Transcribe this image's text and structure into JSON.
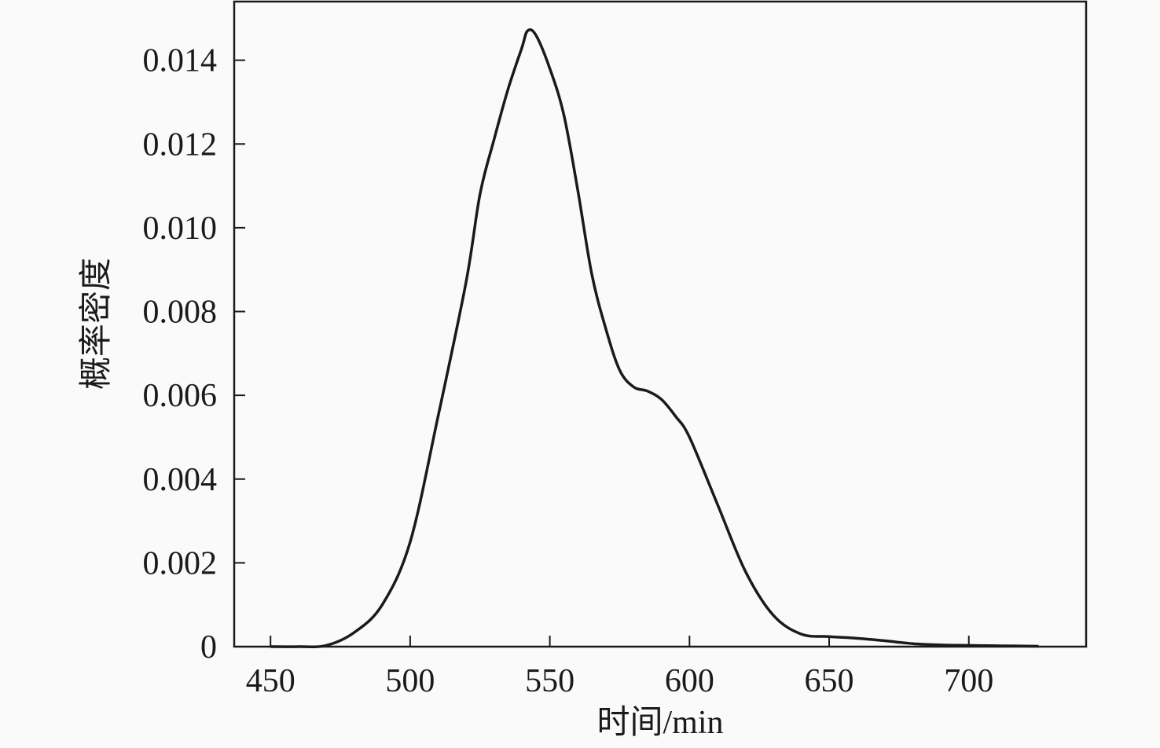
{
  "chart_data": {
    "type": "line",
    "title": "",
    "xlabel": "时间/min",
    "ylabel": "概率密度",
    "xlim": [
      437,
      742
    ],
    "ylim": [
      0,
      0.0154
    ],
    "xticks": [
      450,
      500,
      550,
      600,
      650,
      700
    ],
    "yticks": [
      0,
      0.002,
      0.004,
      0.006,
      0.008,
      0.01,
      0.012,
      0.014
    ],
    "ytick_labels": [
      "0",
      "0.002",
      "0.004",
      "0.006",
      "0.008",
      "0.010",
      "0.012",
      "0.014"
    ],
    "grid": false,
    "line_color": "#1a1a1a",
    "series": [
      {
        "x": [
          450,
          460,
          470,
          480,
          490,
          500,
          510,
          520,
          525,
          530,
          535,
          540,
          542,
          545,
          550,
          555,
          560,
          565,
          570,
          575,
          580,
          585,
          590,
          595,
          600,
          610,
          620,
          630,
          640,
          650,
          660,
          670,
          680,
          690,
          700,
          710,
          725
        ],
        "y": [
          0.0,
          0.0,
          3e-05,
          0.00034,
          0.001,
          0.0025,
          0.0055,
          0.0087,
          0.0108,
          0.0121,
          0.0133,
          0.0143,
          0.0147,
          0.0146,
          0.0138,
          0.0127,
          0.0109,
          0.0089,
          0.0076,
          0.0066,
          0.0062,
          0.0061,
          0.0059,
          0.0055,
          0.005,
          0.0034,
          0.0018,
          0.00075,
          0.0003,
          0.00024,
          0.0002,
          0.00014,
          7e-05,
          4e-05,
          3e-05,
          2e-05,
          1e-05
        ]
      }
    ]
  }
}
